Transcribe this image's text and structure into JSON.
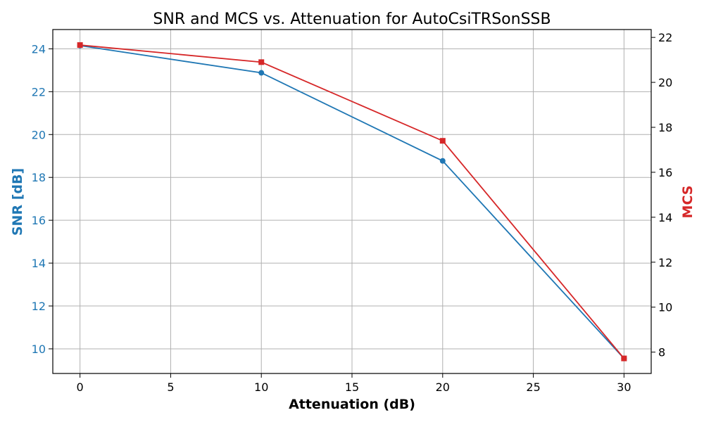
{
  "chart_data": {
    "type": "line",
    "title": "SNR and MCS vs. Attenuation for AutoCsiTRSonSSB",
    "xlabel": "Attenuation (dB)",
    "ylabel_left": "SNR [dB]",
    "ylabel_right": "MCS",
    "x": [
      0,
      10,
      20,
      30
    ],
    "xlim": [
      -1.5,
      31.5
    ],
    "ylim_left": [
      8.85,
      24.9
    ],
    "ylim_right": [
      7.05,
      22.35
    ],
    "xticks": [
      0,
      5,
      10,
      15,
      20,
      25,
      30
    ],
    "yticks_left": [
      10,
      12,
      14,
      16,
      18,
      20,
      22,
      24
    ],
    "yticks_right": [
      8,
      10,
      12,
      14,
      16,
      18,
      20,
      22
    ],
    "grid": true,
    "series": [
      {
        "axis": "left",
        "marker": "circle",
        "color": "#1f77b4",
        "values": [
          24.15,
          22.88,
          18.77,
          9.55
        ]
      },
      {
        "axis": "right",
        "marker": "square",
        "color": "#d62728",
        "values": [
          21.66,
          20.9,
          17.4,
          7.72
        ]
      }
    ]
  }
}
